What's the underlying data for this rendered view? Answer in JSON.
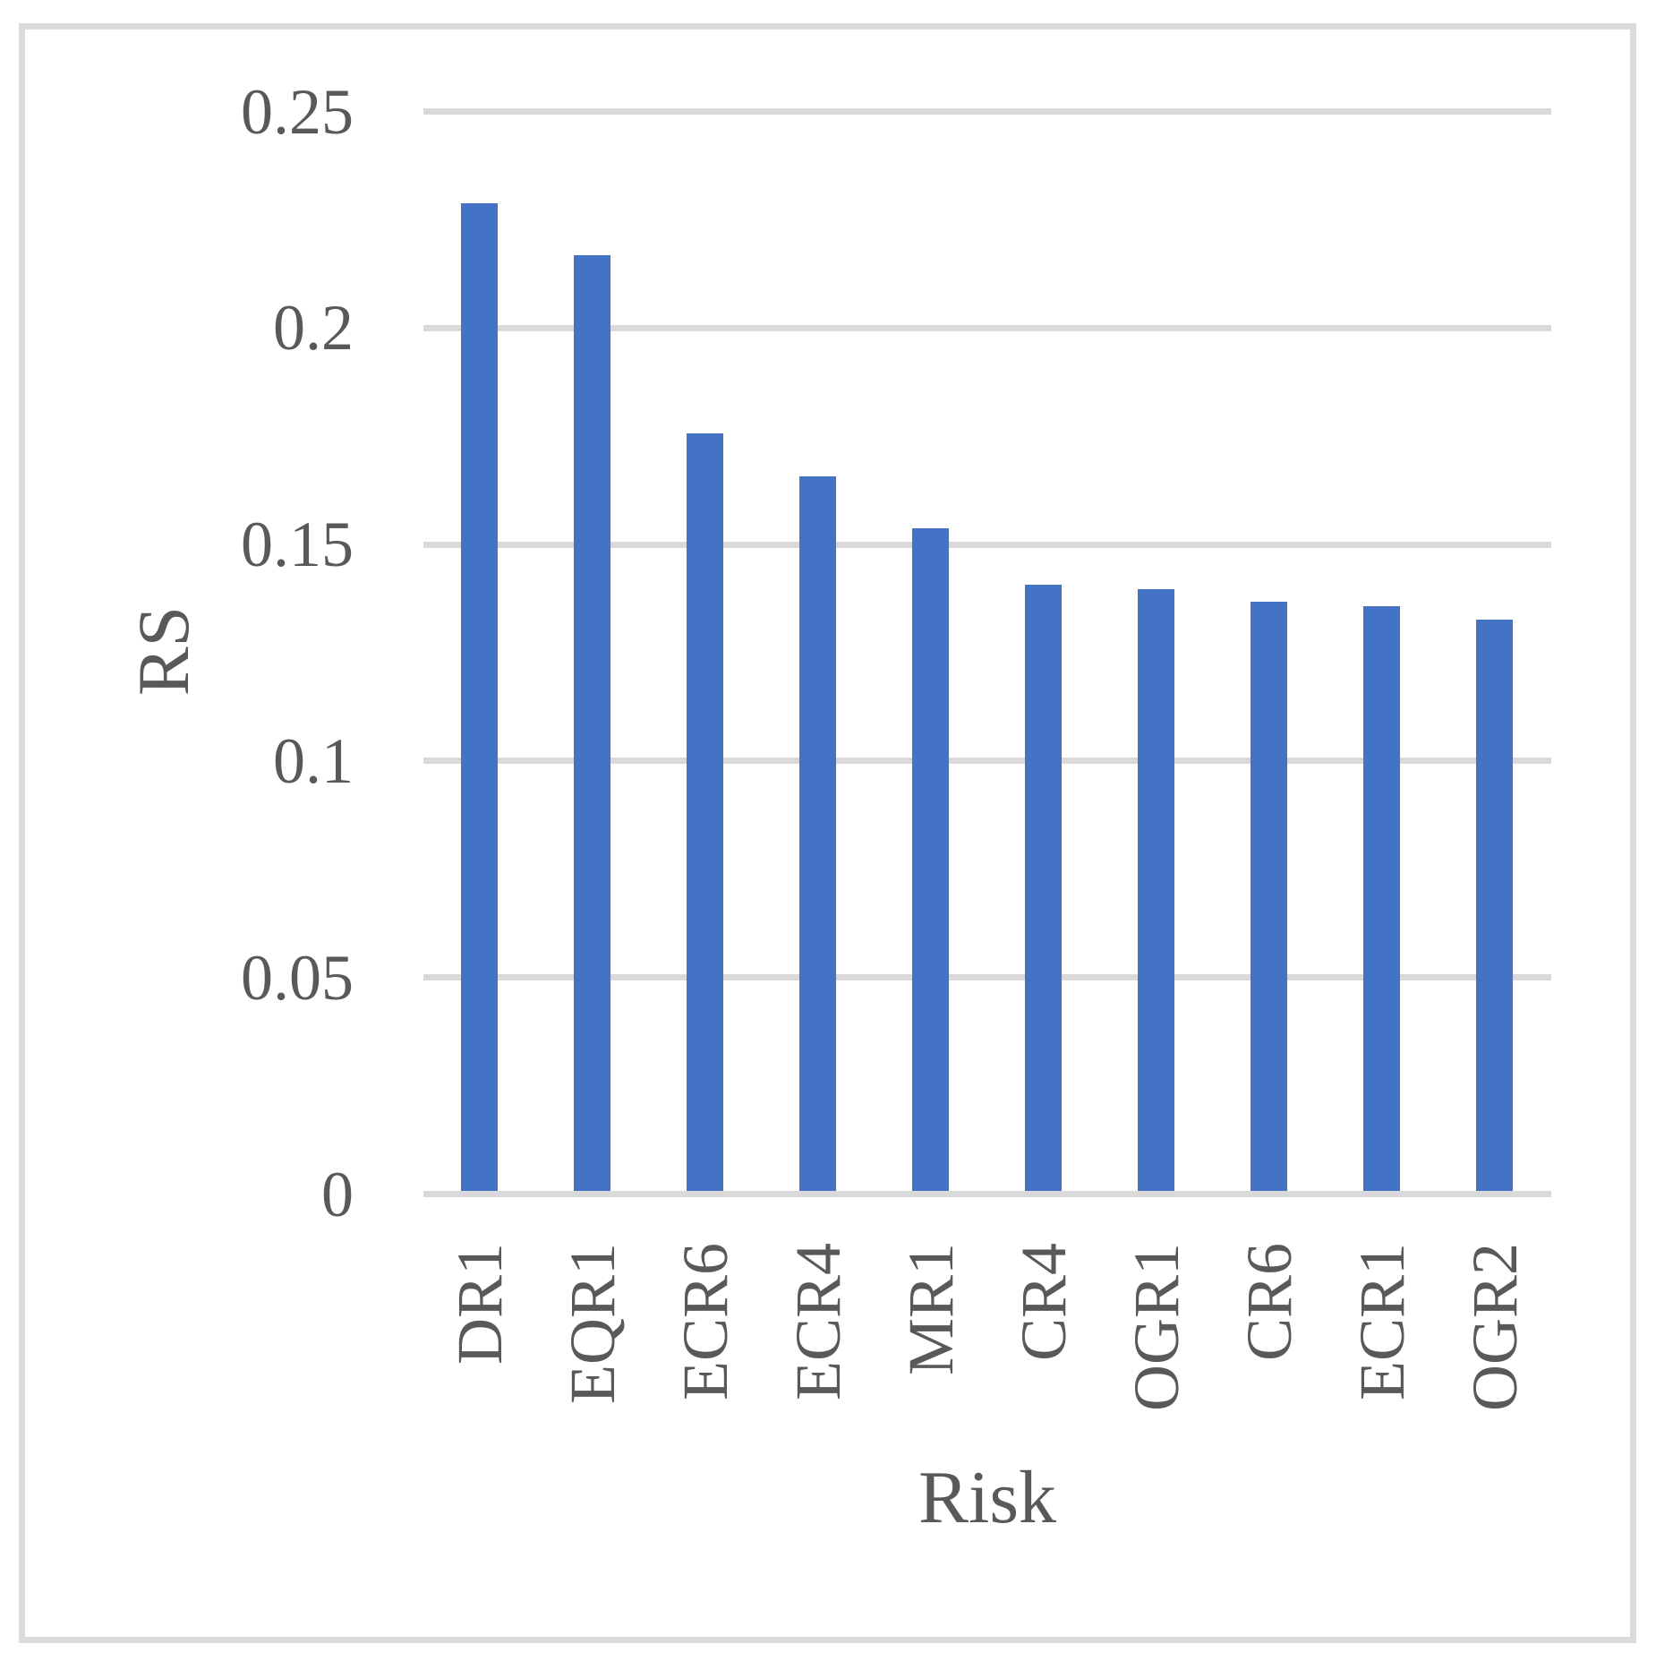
{
  "figure": {
    "background_color": "#FFFFFF",
    "border_color": "#DBDBDB"
  },
  "chart_data": {
    "type": "bar",
    "title": "",
    "categories": [
      "DR1",
      "EQR1",
      "ECR6",
      "ECR4",
      "MR1",
      "CR4",
      "OGR1",
      "CR6",
      "ECR1",
      "OGR2"
    ],
    "values": [
      0.228,
      0.216,
      0.175,
      0.165,
      0.153,
      0.14,
      0.139,
      0.136,
      0.135,
      0.132
    ],
    "xlabel": "Risk",
    "ylabel": "RS",
    "ylim": [
      0,
      0.25
    ],
    "yticks": [
      0,
      0.05,
      0.1,
      0.15,
      0.2,
      0.25
    ],
    "ytick_labels": [
      "0",
      "0.05",
      "0.1",
      "0.15",
      "0.2",
      "0.25"
    ],
    "bar_color": "#4472C4",
    "gridline_color": "#D9D9D9",
    "axis_line_color": "#D9D9D9",
    "label_color": "#595959",
    "grid": "horizontal",
    "legend_position": "none"
  }
}
